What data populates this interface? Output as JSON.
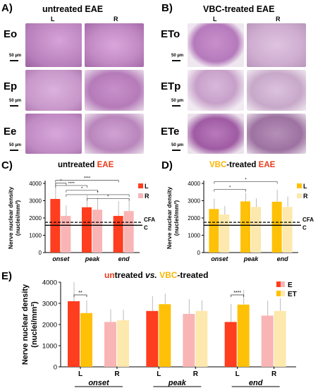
{
  "panels": {
    "A": {
      "letter": "A)",
      "title": "untreated EAE",
      "cols": [
        "L",
        "R"
      ],
      "rows": [
        "Eo",
        "Ep",
        "Ee"
      ],
      "scale": "50 µm"
    },
    "B": {
      "letter": "B)",
      "title": "VBC-treated EAE",
      "cols": [
        "L",
        "R"
      ],
      "rows": [
        "ETo",
        "ETp",
        "ETe"
      ],
      "scale": "50 µm"
    },
    "C": {
      "letter": "C)",
      "title_prefix": "untreated ",
      "title_em": "EAE"
    },
    "D": {
      "letter": "D)",
      "title_em1": "VBC",
      "title_mid": "-treated ",
      "title_em2": "EAE"
    },
    "E": {
      "letter": "E)",
      "title_em1": "un",
      "title_mid1": "treated ",
      "title_vs": "vs.",
      "title_sp": " ",
      "title_em2": "VBC",
      "title_mid2": "-treated"
    }
  },
  "colors": {
    "red": "#ff3d1f",
    "pink": "#f9b5b5",
    "orange": "#ffc107",
    "cream": "#fde8ad",
    "he_base": "#c58fc5"
  },
  "chart_data": [
    {
      "id": "C",
      "type": "bar",
      "title": "untreated EAE",
      "ylabel": "Nerve nuclear density (nuclei/mm²)",
      "categories": [
        "onset",
        "peak",
        "end"
      ],
      "ylim": [
        0,
        4000
      ],
      "yticks": [
        0,
        1000,
        2000,
        3000,
        4000
      ],
      "series": [
        {
          "name": "L",
          "values": [
            3100,
            2620,
            2120
          ],
          "err": [
            900,
            700,
            850
          ],
          "color": "#ff3d1f"
        },
        {
          "name": "R",
          "values": [
            2120,
            2480,
            2400
          ],
          "err": [
            600,
            700,
            700
          ],
          "color": "#f9b5b5"
        }
      ],
      "reference_lines": [
        {
          "label": "CFA",
          "value": 1750,
          "style": "dashed"
        },
        {
          "label": "C",
          "value": 1580,
          "style": "solid"
        }
      ],
      "annotations": [
        "*",
        "****",
        "****",
        "*",
        "*",
        "*"
      ]
    },
    {
      "id": "D",
      "type": "bar",
      "title": "VBC-treated EAE",
      "ylabel": "Nerve nuclear density (nuclei/mm²)",
      "categories": [
        "onset",
        "peak",
        "end"
      ],
      "ylim": [
        0,
        4000
      ],
      "yticks": [
        0,
        1000,
        2000,
        3000,
        4000
      ],
      "series": [
        {
          "name": "L",
          "values": [
            2520,
            2960,
            2940
          ],
          "err": [
            600,
            500,
            700
          ],
          "color": "#ffc107"
        },
        {
          "name": "R",
          "values": [
            2200,
            2640,
            2640
          ],
          "err": [
            500,
            500,
            600
          ],
          "color": "#fde8ad"
        }
      ],
      "reference_lines": [
        {
          "label": "CFA",
          "value": 1750,
          "style": "dashed"
        },
        {
          "label": "C",
          "value": 1580,
          "style": "solid"
        }
      ],
      "annotations": [
        "*",
        "*"
      ]
    },
    {
      "id": "E",
      "type": "bar",
      "title": "untreated vs. VBC-treated",
      "ylabel": "Nerve nuclear density (nuclei/mm²)",
      "groups": [
        "onset",
        "peak",
        "end"
      ],
      "subgroups": [
        "L",
        "R"
      ],
      "ylim": [
        0,
        4000
      ],
      "yticks": [
        0,
        1000,
        2000,
        3000,
        4000
      ],
      "legend": [
        "E",
        "ET"
      ],
      "values": {
        "E": {
          "L": [
            3100,
            2640,
            2120
          ],
          "R": [
            2120,
            2500,
            2420
          ]
        },
        "ET": {
          "L": [
            2540,
            2960,
            2940
          ],
          "R": [
            2200,
            2640,
            2640
          ]
        }
      },
      "annotations": [
        {
          "group": "onset",
          "text": "**"
        },
        {
          "group": "end",
          "text": "****"
        }
      ]
    }
  ]
}
